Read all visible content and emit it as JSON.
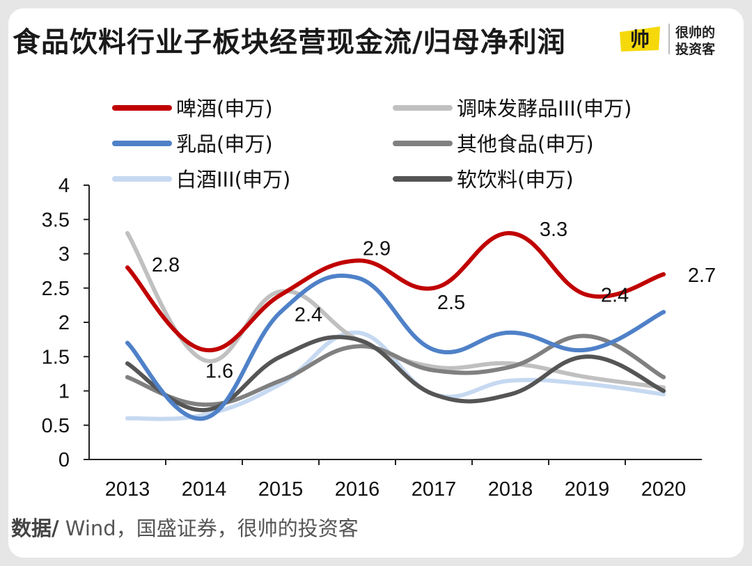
{
  "title": "食品饮料行业子板块经营现金流/归母净利润",
  "logo": {
    "mark": "帅",
    "line1": "很帅的",
    "line2": "投资客",
    "color": "#f5d90a"
  },
  "source": {
    "label": "数据/",
    "text": " Wind，国盛证券，很帅的投资客"
  },
  "chart_data": {
    "type": "line",
    "title": "",
    "xlabel": "",
    "ylabel": "",
    "ylim": [
      0,
      4
    ],
    "yticks": [
      "0",
      "0.5",
      "1",
      "1.5",
      "2",
      "2.5",
      "3",
      "3.5",
      "4"
    ],
    "categories": [
      "2013",
      "2014",
      "2015",
      "2016",
      "2017",
      "2018",
      "2019",
      "2020"
    ],
    "legend_position": "top",
    "series": [
      {
        "name": "啤酒(申万)",
        "color": "#c00000",
        "values": [
          2.8,
          1.6,
          2.4,
          2.9,
          2.5,
          3.3,
          2.4,
          2.7
        ]
      },
      {
        "name": "调味发酵品III(申万)",
        "color": "#c0c0c0",
        "values": [
          3.3,
          1.45,
          2.45,
          1.75,
          1.35,
          1.4,
          1.2,
          1.05
        ]
      },
      {
        "name": "乳品(申万)",
        "color": "#4f81c8",
        "values": [
          1.7,
          0.6,
          2.15,
          2.65,
          1.6,
          1.85,
          1.6,
          2.15
        ]
      },
      {
        "name": "其他食品(申万)",
        "color": "#808080",
        "values": [
          1.2,
          0.8,
          1.15,
          1.65,
          1.3,
          1.35,
          1.8,
          1.2
        ]
      },
      {
        "name": "白酒III(申万)",
        "color": "#c6d9f1",
        "values": [
          0.6,
          0.65,
          1.1,
          1.85,
          0.95,
          1.15,
          1.1,
          0.95
        ]
      },
      {
        "name": "软饮料(申万)",
        "color": "#555555",
        "values": [
          1.4,
          0.72,
          1.5,
          1.75,
          0.95,
          0.95,
          1.5,
          1.0
        ]
      }
    ],
    "annotations": [
      {
        "series": "啤酒(申万)",
        "index": 0,
        "text": "2.8"
      },
      {
        "series": "啤酒(申万)",
        "index": 1,
        "text": "1.6"
      },
      {
        "series": "啤酒(申万)",
        "index": 2,
        "text": "2.4"
      },
      {
        "series": "啤酒(申万)",
        "index": 3,
        "text": "2.9"
      },
      {
        "series": "啤酒(申万)",
        "index": 4,
        "text": "2.5"
      },
      {
        "series": "啤酒(申万)",
        "index": 5,
        "text": "3.3"
      },
      {
        "series": "啤酒(申万)",
        "index": 6,
        "text": "2.4"
      },
      {
        "series": "啤酒(申万)",
        "index": 7,
        "text": "2.7"
      }
    ]
  }
}
